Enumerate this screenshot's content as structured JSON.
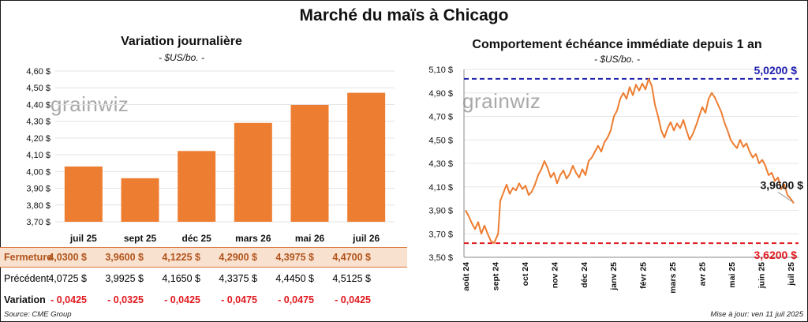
{
  "title": "Marché du maïs à Chicago",
  "watermark": "grainwiz",
  "left_panel": {
    "title": "Variation journalière",
    "unit": "- $US/bo. -"
  },
  "right_panel": {
    "title": "Comportement échéance immédiate depuis 1 an",
    "unit": "- $US/bo. -"
  },
  "source": "Source: CME Group",
  "updated": "Mise à jour: ven 11 juil 2025",
  "colors": {
    "bar": "#ed7d31",
    "line": "#ed7d31",
    "high_line": "#2020b0",
    "low_line": "#e0191f"
  },
  "table": {
    "rows": [
      {
        "label": "Fermeture",
        "values": [
          "4,0300  $",
          "3,9600  $",
          "4,1225  $",
          "4,2900  $",
          "4,3975  $",
          "4,4700  $"
        ]
      },
      {
        "label": "Précédent",
        "values": [
          "4,0725  $",
          "3,9925  $",
          "4,1650  $",
          "4,3375  $",
          "4,4450  $",
          "4,5125  $"
        ]
      },
      {
        "label": "Variation",
        "values": [
          "- 0,0425",
          "- 0,0325",
          "- 0,0425",
          "- 0,0475",
          "- 0,0475",
          "- 0,0425"
        ]
      }
    ]
  },
  "chart_data": [
    {
      "type": "bar",
      "title": "Variation journalière",
      "ylabel": "$US/bo.",
      "categories": [
        "juil 25",
        "sept 25",
        "déc 25",
        "mars 26",
        "mai 26",
        "juil 26"
      ],
      "values": [
        4.03,
        3.96,
        4.1225,
        4.29,
        4.3975,
        4.47
      ],
      "ylim": [
        3.7,
        4.6
      ],
      "yticks": [
        "3,70 $",
        "3,80 $",
        "3,90 $",
        "4,00 $",
        "4,10 $",
        "4,20 $",
        "4,30 $",
        "4,40 $",
        "4,50 $",
        "4,60 $"
      ]
    },
    {
      "type": "line",
      "title": "Comportement échéance immédiate depuis 1 an",
      "ylabel": "$US/bo.",
      "ylim": [
        3.5,
        5.1
      ],
      "yticks": [
        "3,50 $",
        "3,70 $",
        "3,90 $",
        "4,10 $",
        "4,30 $",
        "4,50 $",
        "4,70 $",
        "4,90 $",
        "5,10 $"
      ],
      "xticks": [
        "août 24",
        "sept 24",
        "oct 24",
        "nov 24",
        "déc 24",
        "janv 25",
        "févr 25",
        "mars 25",
        "avr 25",
        "mai 25",
        "juin 25",
        "juil 25"
      ],
      "high": {
        "value": 5.02,
        "label": "5,0200 $"
      },
      "low": {
        "value": 3.62,
        "label": "3,6200 $"
      },
      "last": {
        "value": 3.96,
        "label": "3,9600 $"
      },
      "series": [
        {
          "points": [
            [
              0,
              3.9
            ],
            [
              0.15,
              3.85
            ],
            [
              0.3,
              3.79
            ],
            [
              0.45,
              3.74
            ],
            [
              0.6,
              3.8
            ],
            [
              0.75,
              3.7
            ],
            [
              0.9,
              3.77
            ],
            [
              1.05,
              3.7
            ],
            [
              1.2,
              3.64
            ],
            [
              1.35,
              3.62
            ],
            [
              1.45,
              3.66
            ],
            [
              1.55,
              3.7
            ],
            [
              1.65,
              3.98
            ],
            [
              1.8,
              4.05
            ],
            [
              1.95,
              4.12
            ],
            [
              2.1,
              4.04
            ],
            [
              2.25,
              4.09
            ],
            [
              2.4,
              4.07
            ],
            [
              2.55,
              4.13
            ],
            [
              2.7,
              4.08
            ],
            [
              2.85,
              4.11
            ],
            [
              3.0,
              4.03
            ],
            [
              3.15,
              4.06
            ],
            [
              3.3,
              4.12
            ],
            [
              3.45,
              4.2
            ],
            [
              3.6,
              4.25
            ],
            [
              3.75,
              4.32
            ],
            [
              3.9,
              4.26
            ],
            [
              4.05,
              4.18
            ],
            [
              4.2,
              4.22
            ],
            [
              4.35,
              4.13
            ],
            [
              4.5,
              4.2
            ],
            [
              4.65,
              4.24
            ],
            [
              4.8,
              4.17
            ],
            [
              4.95,
              4.21
            ],
            [
              5.1,
              4.28
            ],
            [
              5.25,
              4.22
            ],
            [
              5.4,
              4.18
            ],
            [
              5.55,
              4.25
            ],
            [
              5.7,
              4.2
            ],
            [
              5.85,
              4.32
            ],
            [
              6.0,
              4.35
            ],
            [
              6.15,
              4.4
            ],
            [
              6.3,
              4.45
            ],
            [
              6.45,
              4.4
            ],
            [
              6.6,
              4.48
            ],
            [
              6.75,
              4.52
            ],
            [
              6.9,
              4.58
            ],
            [
              7.05,
              4.7
            ],
            [
              7.2,
              4.75
            ],
            [
              7.35,
              4.85
            ],
            [
              7.5,
              4.9
            ],
            [
              7.65,
              4.85
            ],
            [
              7.8,
              4.95
            ],
            [
              7.95,
              4.88
            ],
            [
              8.1,
              4.97
            ],
            [
              8.25,
              4.92
            ],
            [
              8.4,
              4.98
            ],
            [
              8.55,
              4.93
            ],
            [
              8.7,
              5.02
            ],
            [
              8.85,
              4.96
            ],
            [
              9.0,
              4.8
            ],
            [
              9.15,
              4.7
            ],
            [
              9.3,
              4.58
            ],
            [
              9.45,
              4.52
            ],
            [
              9.6,
              4.6
            ],
            [
              9.75,
              4.65
            ],
            [
              9.9,
              4.58
            ],
            [
              10.05,
              4.64
            ],
            [
              10.2,
              4.6
            ],
            [
              10.35,
              4.67
            ],
            [
              10.5,
              4.58
            ],
            [
              10.65,
              4.5
            ],
            [
              10.8,
              4.55
            ],
            [
              10.95,
              4.62
            ],
            [
              11.1,
              4.7
            ],
            [
              11.25,
              4.78
            ],
            [
              11.4,
              4.73
            ],
            [
              11.55,
              4.85
            ],
            [
              11.7,
              4.9
            ],
            [
              11.85,
              4.86
            ],
            [
              12.0,
              4.8
            ],
            [
              12.15,
              4.74
            ],
            [
              12.3,
              4.65
            ],
            [
              12.45,
              4.58
            ],
            [
              12.6,
              4.5
            ],
            [
              12.75,
              4.46
            ],
            [
              12.9,
              4.43
            ],
            [
              13.05,
              4.5
            ],
            [
              13.2,
              4.44
            ],
            [
              13.35,
              4.47
            ],
            [
              13.5,
              4.4
            ],
            [
              13.65,
              4.35
            ],
            [
              13.8,
              4.38
            ],
            [
              13.95,
              4.3
            ],
            [
              14.1,
              4.33
            ],
            [
              14.25,
              4.28
            ],
            [
              14.4,
              4.2
            ],
            [
              14.55,
              4.22
            ],
            [
              14.7,
              4.15
            ],
            [
              14.85,
              4.18
            ],
            [
              15.0,
              4.08
            ],
            [
              15.15,
              4.12
            ],
            [
              15.3,
              4.03
            ],
            [
              15.45,
              4.0
            ],
            [
              15.6,
              3.96
            ]
          ]
        }
      ]
    }
  ]
}
